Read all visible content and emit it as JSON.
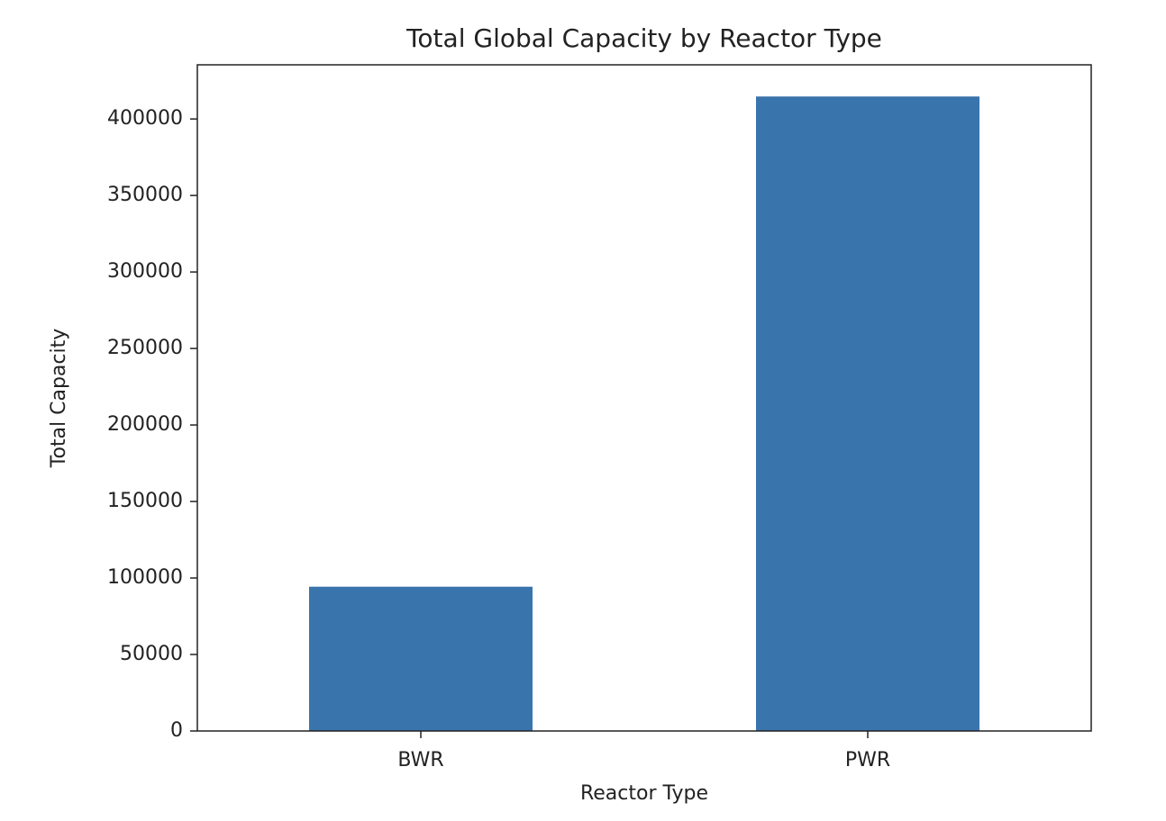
{
  "chart_data": {
    "type": "bar",
    "title": "Total Global Capacity by Reactor Type",
    "x_label": "Reactor Type",
    "y_label": "Total Capacity",
    "categories": [
      "BWR",
      "PWR"
    ],
    "values": [
      94300,
      414700
    ],
    "color": "#3a74ad",
    "ylim": [
      0,
      435400
    ],
    "yticks": [
      0,
      50000,
      100000,
      150000,
      200000,
      250000,
      300000,
      350000,
      400000
    ]
  }
}
